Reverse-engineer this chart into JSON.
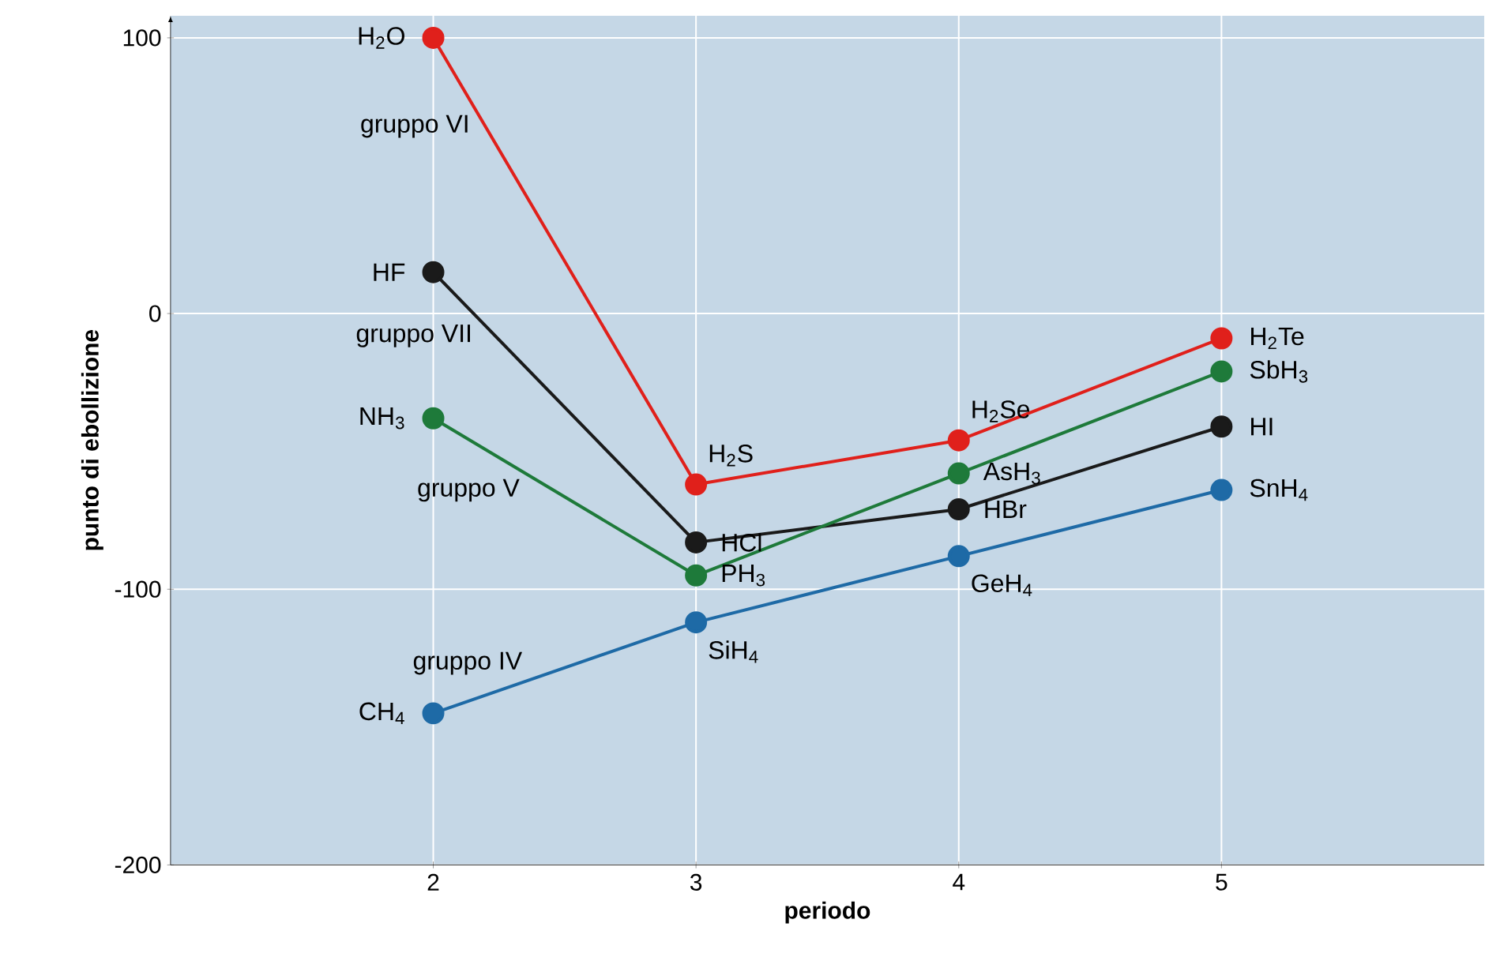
{
  "chart_data": {
    "type": "line",
    "xlabel": "periodo",
    "ylabel": "punto di ebollizione",
    "x": [
      2,
      3,
      4,
      5
    ],
    "series": [
      {
        "color": "#e0201b",
        "values": [
          100,
          -62,
          -46,
          -9
        ]
      },
      {
        "color": "#1a1a1a",
        "values": [
          15,
          -83,
          -71,
          -41
        ]
      },
      {
        "color": "#1e7a3a",
        "values": [
          -38,
          -95,
          -58,
          -21
        ]
      },
      {
        "color": "#1e6aa6",
        "values": [
          -145,
          -112,
          -88,
          -64
        ]
      }
    ],
    "xlim": [
      1,
      6
    ],
    "ylim": [
      -200,
      108
    ],
    "xticks": [
      2,
      3,
      4,
      5
    ],
    "yticks": [
      -200,
      -100,
      0,
      100
    ],
    "grid": true,
    "marker": "circle",
    "line_style": "solid",
    "annotations": [
      {
        "text": "H$_{2}$O",
        "x": 2,
        "y": 100
      },
      {
        "text": "gruppo VI",
        "x": 2.16,
        "y": 74
      },
      {
        "text": "HF",
        "x": 2,
        "y": 15
      },
      {
        "text": "gruppo VII",
        "x": 2.17,
        "y": -2
      },
      {
        "text": "NH$_{3}$",
        "x": 2,
        "y": -38
      },
      {
        "text": "gruppo V",
        "x": 2.35,
        "y": -58
      },
      {
        "text": "gruppo IV",
        "x": 2.36,
        "y": -133
      },
      {
        "text": "CH$_{4}$",
        "x": 2,
        "y": -145
      },
      {
        "text": "H$_{2}$S",
        "x": 3,
        "y": -62
      },
      {
        "text": "HCl",
        "x": 3,
        "y": -83
      },
      {
        "text": "PH$_{3}$",
        "x": 3,
        "y": -95
      },
      {
        "text": "SiH$_{4}$",
        "x": 3,
        "y": -112
      },
      {
        "text": "H$_{2}$Se",
        "x": 4,
        "y": -46
      },
      {
        "text": "AsH$_{3}$",
        "x": 4,
        "y": -58
      },
      {
        "text": "HBr",
        "x": 4,
        "y": -71
      },
      {
        "text": "GeH$_{4}$",
        "x": 4,
        "y": -88
      },
      {
        "text": "H$_{2}$Te",
        "x": 5,
        "y": -9
      },
      {
        "text": "SbH$_{3}$",
        "x": 5,
        "y": -21
      },
      {
        "text": "HI",
        "x": 5,
        "y": -41
      },
      {
        "text": "SnH$_{4}$",
        "x": 5,
        "y": -64
      }
    ]
  }
}
